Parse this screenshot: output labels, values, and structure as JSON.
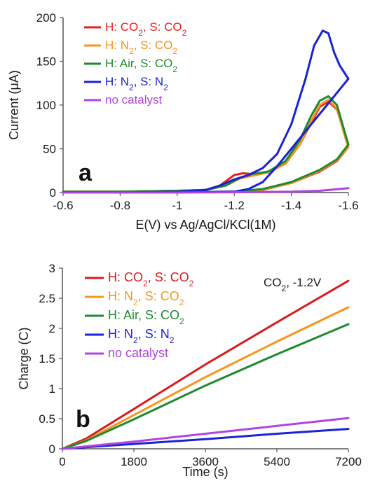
{
  "chart_data": [
    {
      "type": "line",
      "panel_label": "a",
      "xlabel": "E(V) vs Ag/AgCl/KCl(1M)",
      "ylabel": "Current (μA)",
      "xlim": [
        -0.6,
        -1.6
      ],
      "ylim": [
        0,
        200
      ],
      "xticks": [
        "-0.6",
        "-0.8",
        "-1",
        "-1.2",
        "-1.4",
        "-1.6"
      ],
      "yticks": [
        "0",
        "50",
        "100",
        "150",
        "200"
      ],
      "legend_position": "top-left",
      "series": [
        {
          "name": "H: CO2, S: CO2",
          "legend": {
            "p1": "H: CO",
            "s1": "2",
            "p2": ", S: CO",
            "s2": "2"
          },
          "color": "#e8201c",
          "points": [
            [
              -0.6,
              1
            ],
            [
              -0.8,
              1
            ],
            [
              -1.0,
              2
            ],
            [
              -1.1,
              3
            ],
            [
              -1.15,
              8
            ],
            [
              -1.2,
              20
            ],
            [
              -1.23,
              22
            ],
            [
              -1.27,
              21
            ],
            [
              -1.32,
              24
            ],
            [
              -1.38,
              35
            ],
            [
              -1.43,
              55
            ],
            [
              -1.47,
              80
            ],
            [
              -1.5,
              98
            ],
            [
              -1.53,
              104
            ],
            [
              -1.56,
              95
            ],
            [
              -1.59,
              65
            ],
            [
              -1.6,
              52
            ],
            [
              -1.56,
              36
            ],
            [
              -1.5,
              24
            ],
            [
              -1.4,
              11
            ],
            [
              -1.3,
              3
            ],
            [
              -1.2,
              1
            ],
            [
              -1.0,
              0.5
            ],
            [
              -0.8,
              0.3
            ],
            [
              -0.6,
              0.3
            ]
          ]
        },
        {
          "name": "H: N2, S: CO2",
          "legend": {
            "p1": "H: N",
            "s1": "2",
            "p2": ", S: CO",
            "s2": "2"
          },
          "color": "#f7941d",
          "points": [
            [
              -0.6,
              1
            ],
            [
              -0.8,
              1
            ],
            [
              -1.0,
              2
            ],
            [
              -1.1,
              3
            ],
            [
              -1.17,
              8
            ],
            [
              -1.22,
              16
            ],
            [
              -1.26,
              19
            ],
            [
              -1.32,
              23
            ],
            [
              -1.38,
              33
            ],
            [
              -1.43,
              55
            ],
            [
              -1.47,
              82
            ],
            [
              -1.5,
              100
            ],
            [
              -1.53,
              106
            ],
            [
              -1.56,
              96
            ],
            [
              -1.59,
              62
            ],
            [
              -1.6,
              52
            ],
            [
              -1.56,
              37
            ],
            [
              -1.5,
              25
            ],
            [
              -1.4,
              11
            ],
            [
              -1.3,
              3
            ],
            [
              -1.2,
              1
            ],
            [
              -1.0,
              0.5
            ],
            [
              -0.8,
              0.3
            ],
            [
              -0.6,
              0.3
            ]
          ]
        },
        {
          "name": "H: Air, S: CO2",
          "legend": {
            "p1": "H: Air, S: CO",
            "s1": "2",
            "p2": "",
            "s2": ""
          },
          "color": "#1e8a2e",
          "points": [
            [
              -0.6,
              1
            ],
            [
              -0.8,
              1
            ],
            [
              -1.0,
              2
            ],
            [
              -1.1,
              3
            ],
            [
              -1.17,
              8
            ],
            [
              -1.22,
              17
            ],
            [
              -1.26,
              21
            ],
            [
              -1.32,
              24
            ],
            [
              -1.38,
              36
            ],
            [
              -1.43,
              60
            ],
            [
              -1.47,
              88
            ],
            [
              -1.5,
              105
            ],
            [
              -1.53,
              110
            ],
            [
              -1.56,
              100
            ],
            [
              -1.59,
              66
            ],
            [
              -1.6,
              55
            ],
            [
              -1.56,
              38
            ],
            [
              -1.5,
              26
            ],
            [
              -1.4,
              12
            ],
            [
              -1.3,
              4
            ],
            [
              -1.2,
              1
            ],
            [
              -1.0,
              0.5
            ],
            [
              -0.8,
              0.3
            ],
            [
              -0.6,
              0.3
            ]
          ]
        },
        {
          "name": "H: N2, S: N2",
          "legend": {
            "p1": "H: N",
            "s1": "2",
            "p2": ", S: N",
            "s2": "2"
          },
          "color": "#1a22d6",
          "points": [
            [
              -0.6,
              0
            ],
            [
              -0.8,
              0
            ],
            [
              -1.0,
              1
            ],
            [
              -1.1,
              3
            ],
            [
              -1.15,
              8
            ],
            [
              -1.2,
              15
            ],
            [
              -1.25,
              20
            ],
            [
              -1.3,
              28
            ],
            [
              -1.35,
              44
            ],
            [
              -1.4,
              78
            ],
            [
              -1.45,
              130
            ],
            [
              -1.48,
              168
            ],
            [
              -1.51,
              185
            ],
            [
              -1.53,
              182
            ],
            [
              -1.55,
              160
            ],
            [
              -1.57,
              145
            ],
            [
              -1.6,
              130
            ],
            [
              -1.55,
              110
            ],
            [
              -1.5,
              90
            ],
            [
              -1.45,
              70
            ],
            [
              -1.4,
              50
            ],
            [
              -1.35,
              30
            ],
            [
              -1.3,
              12
            ],
            [
              -1.25,
              4
            ],
            [
              -1.2,
              1
            ],
            [
              -1.0,
              0.3
            ],
            [
              -0.8,
              0.2
            ],
            [
              -0.6,
              0.2
            ]
          ]
        },
        {
          "name": "no catalyst",
          "legend": {
            "p1": "no catalyst",
            "s1": "",
            "p2": "",
            "s2": ""
          },
          "color": "#b144e0",
          "points": [
            [
              -0.6,
              0
            ],
            [
              -1.0,
              0
            ],
            [
              -1.2,
              0.3
            ],
            [
              -1.4,
              1
            ],
            [
              -1.5,
              2
            ],
            [
              -1.6,
              5
            ]
          ]
        }
      ]
    },
    {
      "type": "line",
      "panel_label": "b",
      "annotation": {
        "p1": "CO",
        "s1": "2",
        "p2": ", -1.2V"
      },
      "xlabel": "Time (s)",
      "ylabel": "Charge (C)",
      "xlim": [
        0,
        7200
      ],
      "ylim": [
        0,
        3
      ],
      "xticks": [
        "0",
        "1800",
        "3600",
        "5400",
        "7200"
      ],
      "yticks": [
        "0",
        "0.5",
        "1",
        "1.5",
        "2",
        "2.5",
        "3"
      ],
      "legend_position": "top-left",
      "series": [
        {
          "name": "H: CO2, S: CO2",
          "legend": {
            "p1": "H: CO",
            "s1": "2",
            "p2": ", S: CO",
            "s2": "2"
          },
          "color": "#d81c1c",
          "points": [
            [
              0,
              0
            ],
            [
              600,
              0.17
            ],
            [
              1800,
              0.66
            ],
            [
              3600,
              1.4
            ],
            [
              5400,
              2.1
            ],
            [
              7200,
              2.79
            ]
          ]
        },
        {
          "name": "H: N2, S: CO2",
          "legend": {
            "p1": "H: N",
            "s1": "2",
            "p2": ", S: CO",
            "s2": "2"
          },
          "color": "#f7941d",
          "points": [
            [
              0,
              0
            ],
            [
              600,
              0.14
            ],
            [
              1800,
              0.56
            ],
            [
              3600,
              1.19
            ],
            [
              5400,
              1.78
            ],
            [
              7200,
              2.35
            ]
          ]
        },
        {
          "name": "H: Air, S: CO2",
          "legend": {
            "p1": "H: Air, S: CO",
            "s1": "2",
            "p2": "",
            "s2": ""
          },
          "color": "#1e8a2e",
          "points": [
            [
              0,
              0
            ],
            [
              600,
              0.13
            ],
            [
              1800,
              0.49
            ],
            [
              3600,
              1.05
            ],
            [
              5400,
              1.57
            ],
            [
              7200,
              2.07
            ]
          ]
        },
        {
          "name": "H: N2, S: N2",
          "legend": {
            "p1": "H: N",
            "s1": "2",
            "p2": ", S: N",
            "s2": "2"
          },
          "color": "#1a22d6",
          "points": [
            [
              0,
              0
            ],
            [
              1800,
              0.08
            ],
            [
              3600,
              0.16
            ],
            [
              5400,
              0.25
            ],
            [
              7200,
              0.33
            ]
          ]
        },
        {
          "name": "no catalyst",
          "legend": {
            "p1": "no catalyst",
            "s1": "",
            "p2": "",
            "s2": ""
          },
          "color": "#b144e0",
          "points": [
            [
              0,
              0
            ],
            [
              1800,
              0.12
            ],
            [
              3600,
              0.25
            ],
            [
              5400,
              0.38
            ],
            [
              7200,
              0.51
            ]
          ]
        }
      ]
    }
  ]
}
